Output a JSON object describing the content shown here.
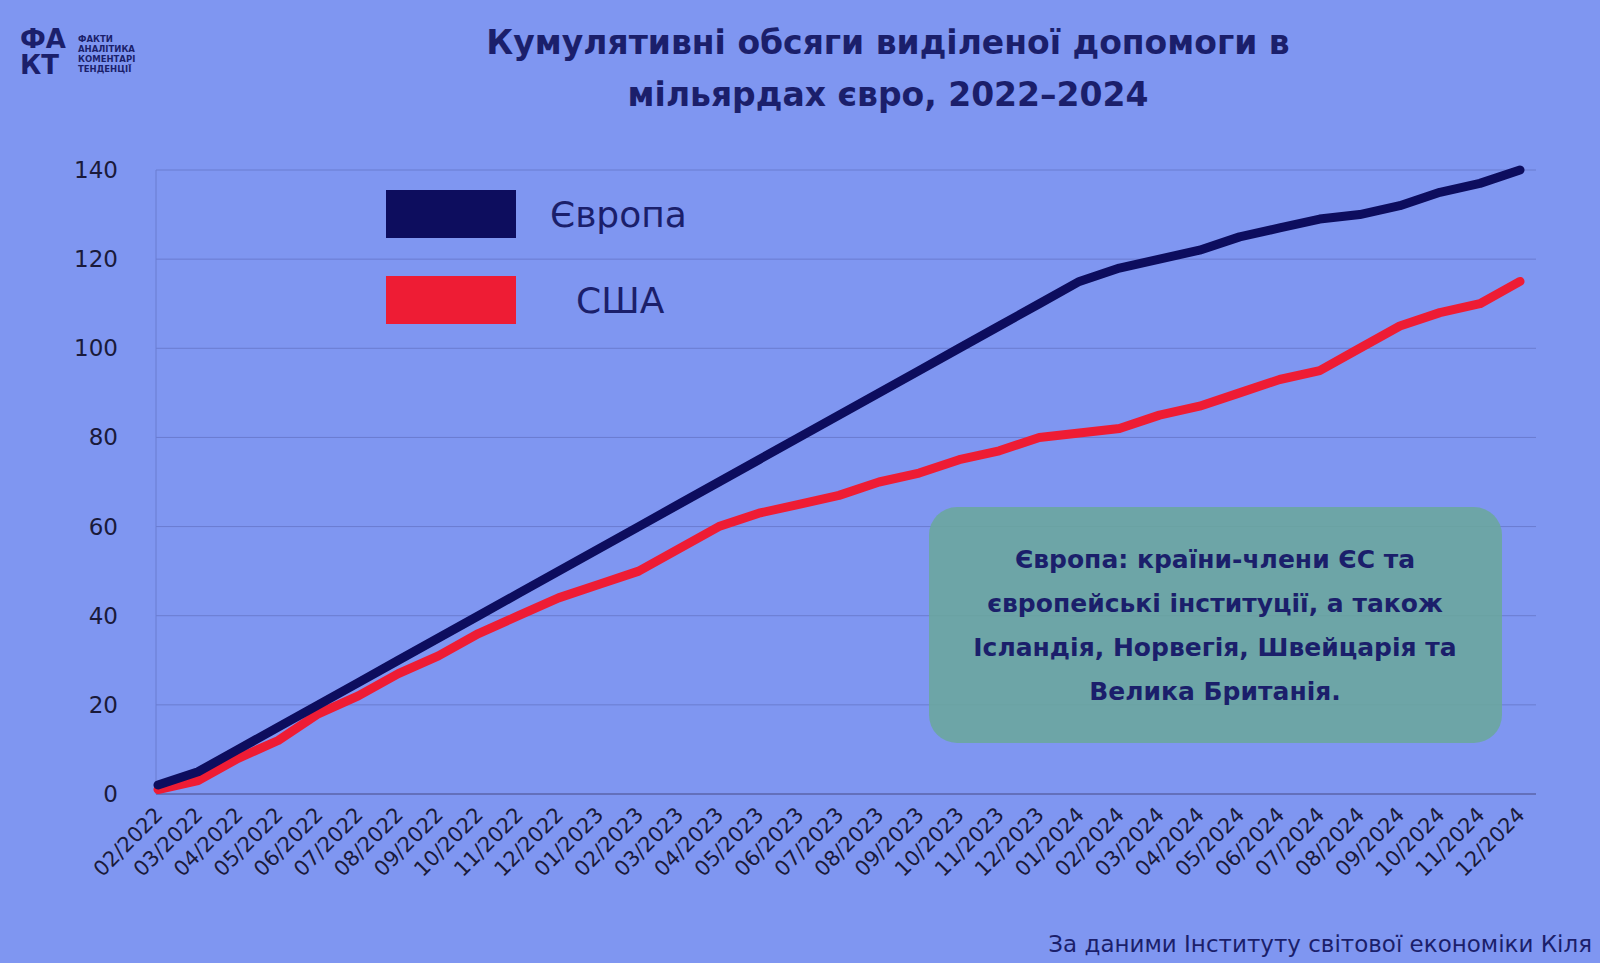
{
  "chart_data": {
    "type": "line",
    "title": "Кумулятивні обсяги виділеної допомоги в мільярдах євро, 2022–2024",
    "categories": [
      "02/2022",
      "03/2022",
      "04/2022",
      "05/2022",
      "06/2022",
      "07/2022",
      "08/2022",
      "09/2022",
      "10/2022",
      "11/2022",
      "12/2022",
      "01/2023",
      "02/2023",
      "03/2023",
      "04/2023",
      "05/2023",
      "06/2023",
      "07/2023",
      "08/2023",
      "09/2023",
      "10/2023",
      "11/2023",
      "12/2023",
      "01/2024",
      "02/2024",
      "03/2024",
      "04/2024",
      "05/2024",
      "06/2024",
      "07/2024",
      "08/2024",
      "09/2024",
      "10/2024",
      "11/2024",
      "12/2024"
    ],
    "series": [
      {
        "name": "Європа",
        "color": "#0d0d5e",
        "values": [
          2,
          5,
          10,
          15,
          20,
          25,
          30,
          35,
          40,
          45,
          50,
          55,
          60,
          65,
          70,
          75,
          80,
          85,
          90,
          95,
          100,
          105,
          110,
          115,
          118,
          120,
          122,
          125,
          127,
          129,
          130,
          132,
          135,
          137,
          140
        ]
      },
      {
        "name": "США",
        "color": "#ee1c34",
        "values": [
          1,
          3,
          8,
          12,
          18,
          22,
          27,
          31,
          36,
          40,
          44,
          47,
          50,
          55,
          60,
          63,
          65,
          67,
          70,
          72,
          75,
          77,
          80,
          81,
          82,
          85,
          87,
          90,
          93,
          95,
          100,
          105,
          108,
          110,
          115
        ]
      }
    ],
    "ylim": [
      0,
      140
    ],
    "yticks": [
      0,
      20,
      40,
      60,
      80,
      100,
      120,
      140
    ],
    "grid": true,
    "legend": "upper left",
    "annotation": "Європа: країни-члени ЄС та європейські інституції, а також Ісландія, Норвегія, Швейцарія та Велика Британія.",
    "source": "За даними Інституту світової економіки Кіля"
  },
  "logo": {
    "mark": [
      "ФА",
      "КТ"
    ],
    "lines": [
      "ФАКТИ",
      "АНАЛІТИКА",
      "КОМЕНТАРІ",
      "ТЕНДЕНЦІЇ"
    ]
  }
}
